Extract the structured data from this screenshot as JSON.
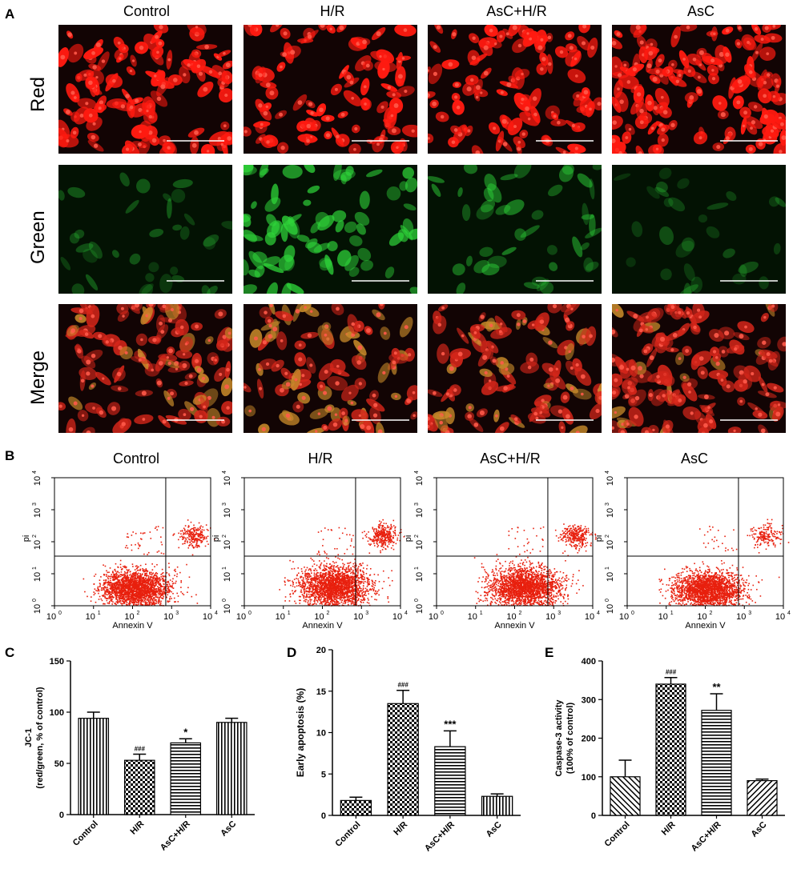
{
  "panels": {
    "a": "A",
    "b": "B",
    "c": "C",
    "d": "D",
    "e": "E"
  },
  "microscopy": {
    "columns": [
      "Control",
      "H/R",
      "AsC+H/R",
      "AsC"
    ],
    "rows": [
      "Red",
      "Green",
      "Merge"
    ],
    "colors": {
      "red": "#ff1a10",
      "green": "#2fd63a",
      "background": "#120404"
    },
    "scale_bar_color": "#ffffff"
  },
  "flow": {
    "titles": [
      "Control",
      "H/R",
      "AsC+H/R",
      "AsC"
    ],
    "xlabel": "Annexin V",
    "ylabel": "pi",
    "tick_base": "10",
    "tick_exps": [
      "0",
      "1",
      "2",
      "3",
      "4"
    ],
    "dot_color": "#e8200e"
  },
  "chart_data": [
    {
      "type": "bar",
      "categories": [
        "Control",
        "H/R",
        "AsC+H/R",
        "AsC"
      ],
      "values": [
        94,
        53,
        70,
        90
      ],
      "errors": [
        6,
        6,
        4,
        4
      ],
      "annotations": [
        "",
        "###",
        "*",
        ""
      ],
      "ylabel_line1": "JC-1",
      "ylabel_line2": "(red/green, % of control)",
      "ylim": [
        0,
        150
      ],
      "yticks": [
        "0",
        "50",
        "100",
        "150"
      ]
    },
    {
      "type": "bar",
      "categories": [
        "Control",
        "H/R",
        "AsC+H/R",
        "AsC"
      ],
      "values": [
        1.8,
        13.5,
        8.3,
        2.3
      ],
      "errors": [
        0.4,
        1.6,
        1.9,
        0.3
      ],
      "annotations": [
        "",
        "###",
        "***",
        ""
      ],
      "ylabel_line1": "Early apoptosis (%)",
      "ylabel_line2": "",
      "ylim": [
        0,
        20
      ],
      "yticks": [
        "0",
        "5",
        "10",
        "15",
        "20"
      ]
    },
    {
      "type": "bar",
      "categories": [
        "Control",
        "H/R",
        "AsC+H/R",
        "AsC"
      ],
      "values": [
        100,
        340,
        272,
        90
      ],
      "errors": [
        43,
        17,
        43,
        4
      ],
      "annotations": [
        "",
        "###",
        "**",
        ""
      ],
      "ylabel_line1": "Caspase-3 activity",
      "ylabel_line2": "(100% of control)",
      "ylim": [
        0,
        400
      ],
      "yticks": [
        "0",
        "100",
        "200",
        "300",
        "400"
      ]
    }
  ]
}
